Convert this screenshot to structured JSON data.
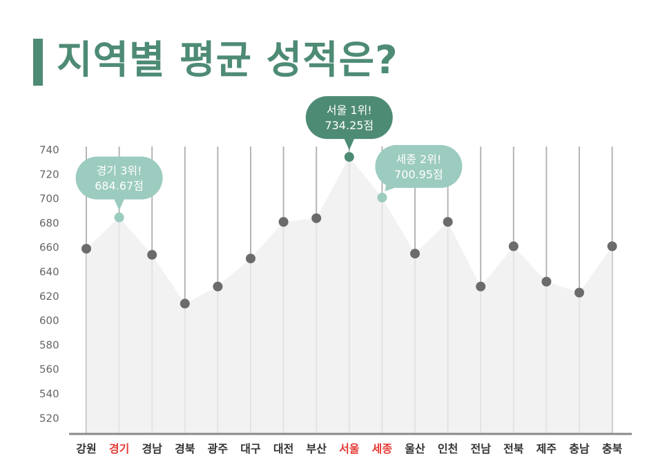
{
  "title": "지역별 평균 성적은?",
  "colors": {
    "title": "#4e8b74",
    "area": "#efefef",
    "grid": "#b5b5b5",
    "axis": "#888888",
    "point": "#6b6b6b",
    "first": "#4e8b74",
    "other_top": "#9ccbbf",
    "highlight_label": "#e53935"
  },
  "chart_data": {
    "type": "area",
    "categories": [
      "강원",
      "경기",
      "경남",
      "경북",
      "광주",
      "대구",
      "대전",
      "부산",
      "서울",
      "세종",
      "울산",
      "인천",
      "전남",
      "전북",
      "제주",
      "충남",
      "충북"
    ],
    "values": [
      659,
      684.67,
      654,
      614,
      628,
      651,
      681,
      684,
      734.25,
      700.95,
      655,
      681,
      628,
      661,
      632,
      623,
      661
    ],
    "yticks": [
      520,
      540,
      560,
      580,
      600,
      620,
      640,
      660,
      680,
      700,
      720,
      740
    ],
    "ylim": [
      510,
      740
    ],
    "highlighted_categories": [
      "경기",
      "서울",
      "세종"
    ],
    "callouts": [
      {
        "category": "서울",
        "line1": "서울 1위!",
        "line2": "734.25점",
        "style": "first"
      },
      {
        "category": "세종",
        "line1": "세종 2위!",
        "line2": "700.95점",
        "style": "other_top"
      },
      {
        "category": "경기",
        "line1": "경기 3위!",
        "line2": "684.67점",
        "style": "other_top"
      }
    ],
    "grid": true
  }
}
